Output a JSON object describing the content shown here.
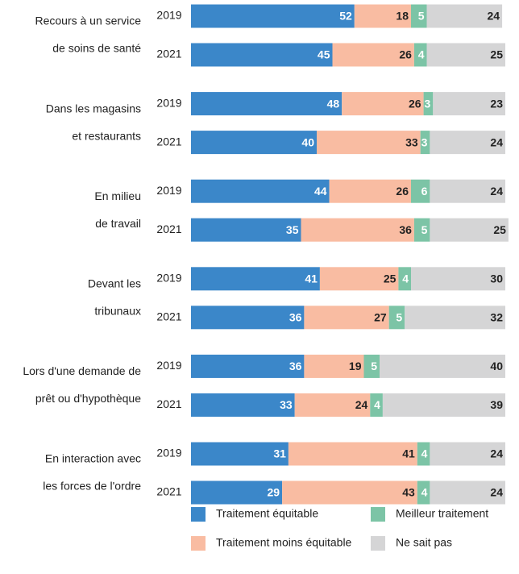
{
  "chart_data": {
    "type": "stacked-bar-h",
    "groups": [
      [
        "Recours à un service",
        "de soins de santé"
      ],
      [
        "Dans les magasins",
        "et restaurants"
      ],
      [
        "En milieu",
        "de travail"
      ],
      [
        "Devant les",
        "tribunaux"
      ],
      [
        "Lors d'une demande de",
        "prêt ou d'hypothèque"
      ],
      [
        "En interaction avec",
        "les forces de l'ordre"
      ]
    ],
    "years": [
      "2019",
      "2021"
    ],
    "xlim": [
      0,
      100
    ],
    "series": [
      {
        "name": "Traitement équitable",
        "color": "#3b87c9",
        "label_color": "#ffffff",
        "values": [
          52,
          45,
          48,
          40,
          44,
          35,
          41,
          36,
          36,
          33,
          31,
          29
        ]
      },
      {
        "name": "Traitement moins équitable",
        "color": "#f9bca2",
        "label_color": "#222222",
        "values": [
          18,
          26,
          26,
          33,
          26,
          36,
          25,
          27,
          19,
          24,
          41,
          43
        ]
      },
      {
        "name": "Meilleur traitement",
        "color": "#7cc4a6",
        "label_color": "#ffffff",
        "values": [
          5,
          4,
          3,
          3,
          6,
          5,
          4,
          5,
          5,
          4,
          4,
          4
        ]
      },
      {
        "name": "Ne sait pas",
        "color": "#d5d5d6",
        "label_color": "#222222",
        "values": [
          24,
          25,
          23,
          24,
          24,
          25,
          30,
          32,
          40,
          39,
          24,
          24
        ]
      }
    ]
  }
}
